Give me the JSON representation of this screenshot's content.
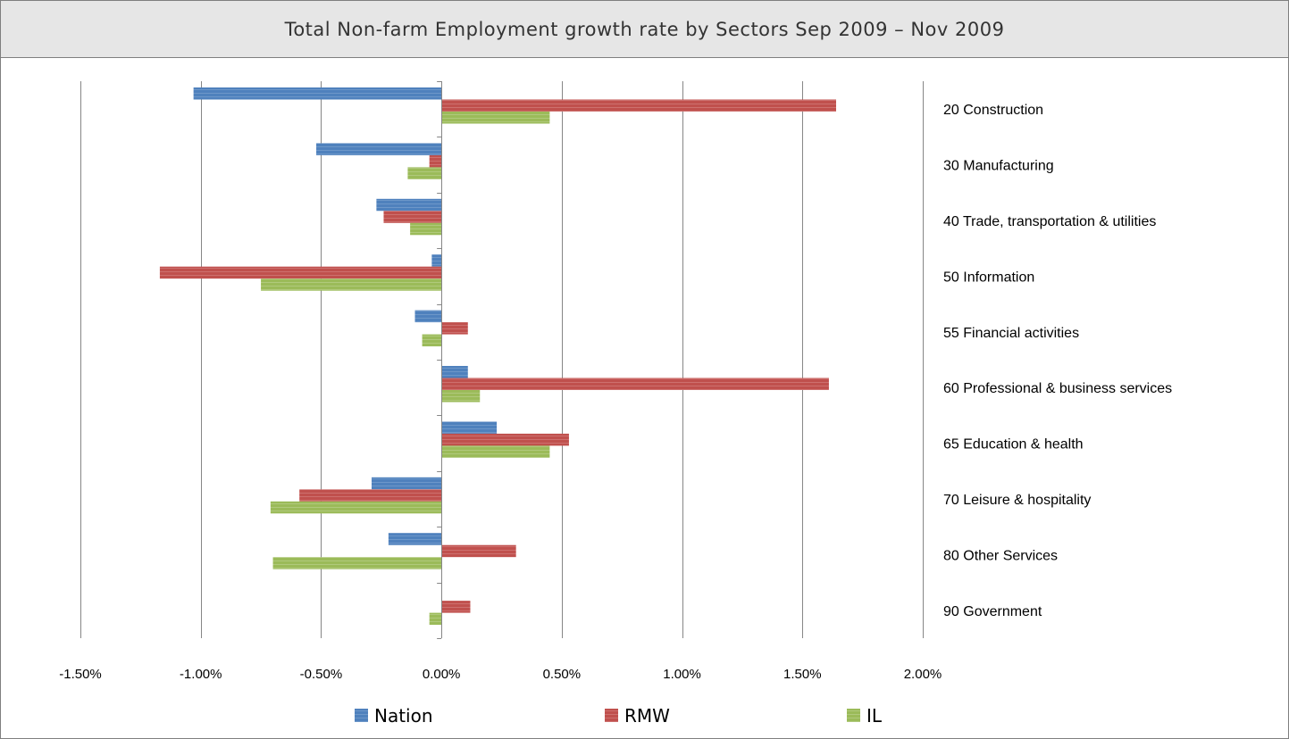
{
  "chart_data": {
    "type": "bar",
    "orientation": "horizontal",
    "title": "Total Non-farm Employment growth rate by Sectors Sep 2009 –  Nov 2009",
    "categories": [
      "20 Construction",
      "30 Manufacturing",
      "40 Trade, transportation  & utilities",
      "50 Information",
      "55 Financial activities",
      "60 Professional & business services",
      "65 Education  & health",
      "70 Leisure & hospitality",
      "80 Other Services",
      "90 Government"
    ],
    "series": [
      {
        "name": "Nation",
        "color": "#4f81bd",
        "values": [
          -1.03,
          -0.52,
          -0.27,
          -0.04,
          -0.11,
          0.11,
          0.23,
          -0.29,
          -0.22,
          0.0
        ]
      },
      {
        "name": "RMW",
        "color": "#c0504d",
        "values": [
          1.64,
          -0.05,
          -0.24,
          -1.17,
          0.11,
          1.61,
          0.53,
          -0.59,
          0.31,
          0.12
        ]
      },
      {
        "name": "IL",
        "color": "#9bbb59",
        "values": [
          0.45,
          -0.14,
          -0.13,
          -0.75,
          -0.08,
          0.16,
          0.45,
          -0.71,
          -0.7,
          -0.05
        ]
      }
    ],
    "xlim": [
      -1.5,
      2.0
    ],
    "x_ticks": [
      "-1.50%",
      "-1.00%",
      "-0.50%",
      "0.00%",
      "0.50%",
      "1.00%",
      "1.50%",
      "2.00%"
    ],
    "x_tick_values": [
      -1.5,
      -1.0,
      -0.5,
      0.0,
      0.5,
      1.0,
      1.5,
      2.0
    ],
    "value_unit": "%",
    "grid": "vertical",
    "legend_position": "bottom"
  }
}
